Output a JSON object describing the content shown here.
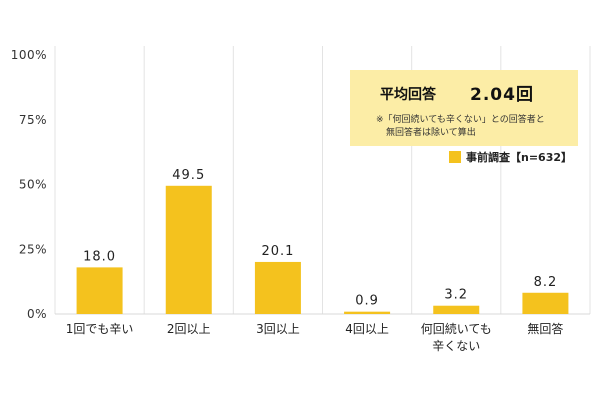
{
  "chart_data": {
    "type": "bar",
    "categories": [
      "1回でも辛い",
      "2回以上",
      "3回以上",
      "4回以上",
      "何回続いても\n辛くない",
      "無回答"
    ],
    "series": [
      {
        "name": "事前調査【n=632】",
        "values": [
          18.0,
          49.5,
          20.1,
          0.9,
          3.2,
          8.2
        ]
      }
    ],
    "data_labels": [
      "18.0",
      "49.5",
      "20.1",
      "0.9",
      "3.2",
      "8.2"
    ],
    "yticks": [
      "100%",
      "75%",
      "50%",
      "25%",
      "0%"
    ],
    "ylim": [
      0,
      100
    ],
    "grid": "vertical separators",
    "legend_position": "top-right",
    "bar_color": "#F4C21E",
    "average_box": {
      "title": "平均回答",
      "value": "2.04回",
      "note_line1": "※「何回続いても辛くない」との回答者と",
      "note_line2": "無回答者は除いて算出",
      "bg_color": "#FCEDA6"
    }
  }
}
